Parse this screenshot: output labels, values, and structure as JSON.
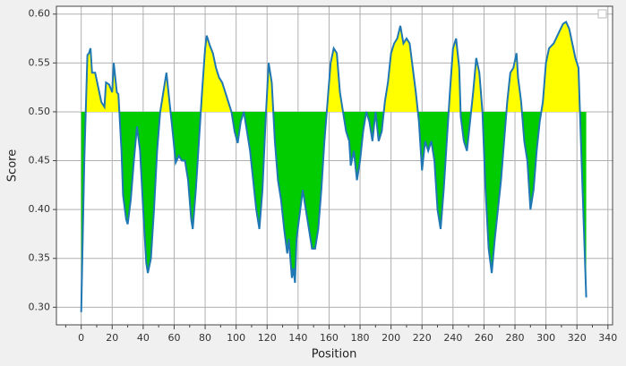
{
  "chart_data": {
    "type": "line",
    "xlabel": "Position",
    "ylabel": "Score",
    "x": [
      0,
      2,
      4,
      5,
      6,
      7,
      9,
      11,
      13,
      15,
      16,
      18,
      20,
      21,
      23,
      24,
      26,
      27,
      29,
      30,
      32,
      34,
      36,
      38,
      40,
      42,
      43,
      45,
      47,
      49,
      51,
      53,
      55,
      57,
      59,
      61,
      63,
      65,
      67,
      69,
      71,
      72,
      74,
      76,
      78,
      80,
      81,
      83,
      85,
      87,
      89,
      91,
      93,
      95,
      97,
      99,
      101,
      103,
      105,
      107,
      109,
      111,
      113,
      115,
      117,
      119,
      121,
      123,
      125,
      127,
      129,
      131,
      133,
      134,
      136,
      137,
      138,
      139,
      141,
      143,
      145,
      147,
      149,
      151,
      153,
      155,
      157,
      159,
      161,
      163,
      165,
      167,
      169,
      171,
      173,
      174,
      176,
      178,
      180,
      182,
      184,
      186,
      188,
      190,
      192,
      194,
      196,
      198,
      200,
      202,
      204,
      206,
      208,
      210,
      212,
      214,
      216,
      218,
      220,
      222,
      224,
      226,
      228,
      230,
      232,
      234,
      236,
      238,
      240,
      242,
      244,
      245,
      247,
      249,
      251,
      253,
      255,
      257,
      259,
      261,
      263,
      265,
      267,
      269,
      271,
      273,
      275,
      277,
      279,
      281,
      282,
      284,
      286,
      288,
      290,
      292,
      294,
      296,
      298,
      300,
      302,
      305,
      308,
      311,
      313,
      315,
      317,
      319,
      321,
      323,
      326
    ],
    "values": [
      0.295,
      0.45,
      0.558,
      0.56,
      0.565,
      0.54,
      0.54,
      0.525,
      0.51,
      0.505,
      0.53,
      0.528,
      0.52,
      0.55,
      0.52,
      0.518,
      0.46,
      0.415,
      0.39,
      0.385,
      0.41,
      0.45,
      0.485,
      0.46,
      0.4,
      0.345,
      0.335,
      0.35,
      0.4,
      0.46,
      0.5,
      0.52,
      0.54,
      0.51,
      0.48,
      0.448,
      0.455,
      0.45,
      0.45,
      0.43,
      0.39,
      0.38,
      0.42,
      0.47,
      0.52,
      0.565,
      0.578,
      0.568,
      0.56,
      0.545,
      0.535,
      0.53,
      0.52,
      0.51,
      0.5,
      0.48,
      0.468,
      0.49,
      0.5,
      0.48,
      0.46,
      0.43,
      0.4,
      0.38,
      0.42,
      0.49,
      0.55,
      0.53,
      0.47,
      0.43,
      0.41,
      0.38,
      0.355,
      0.37,
      0.33,
      0.34,
      0.325,
      0.37,
      0.395,
      0.42,
      0.4,
      0.38,
      0.36,
      0.36,
      0.38,
      0.42,
      0.47,
      0.51,
      0.55,
      0.565,
      0.56,
      0.52,
      0.5,
      0.48,
      0.47,
      0.445,
      0.46,
      0.43,
      0.45,
      0.48,
      0.5,
      0.49,
      0.47,
      0.5,
      0.47,
      0.48,
      0.51,
      0.53,
      0.56,
      0.57,
      0.575,
      0.588,
      0.57,
      0.575,
      0.57,
      0.545,
      0.52,
      0.49,
      0.44,
      0.47,
      0.46,
      0.47,
      0.45,
      0.4,
      0.38,
      0.42,
      0.47,
      0.52,
      0.565,
      0.575,
      0.545,
      0.495,
      0.47,
      0.46,
      0.49,
      0.52,
      0.555,
      0.54,
      0.5,
      0.42,
      0.36,
      0.335,
      0.37,
      0.4,
      0.43,
      0.47,
      0.51,
      0.54,
      0.545,
      0.56,
      0.535,
      0.51,
      0.47,
      0.45,
      0.4,
      0.42,
      0.46,
      0.49,
      0.51,
      0.55,
      0.565,
      0.57,
      0.58,
      0.59,
      0.592,
      0.585,
      0.57,
      0.555,
      0.545,
      0.45,
      0.31
    ],
    "color": "#1f77b4",
    "fill_threshold": 0.5,
    "fill_above_color": "#ffff00",
    "fill_below_color": "#00cc00",
    "xlim": [
      -16,
      343
    ],
    "ylim": [
      0.282,
      0.608
    ],
    "xticks": [
      0,
      20,
      40,
      60,
      80,
      100,
      120,
      140,
      160,
      180,
      200,
      220,
      240,
      260,
      280,
      300,
      320,
      340
    ],
    "xminorticks": [
      -10,
      10,
      30,
      50,
      70,
      90,
      110,
      130,
      150,
      170,
      190,
      210,
      230,
      250,
      270,
      290,
      310,
      330
    ],
    "yticks": [
      {
        "value": 0.3,
        "label": "0.30"
      },
      0.35,
      {
        "value": 0.4,
        "label": "0.40"
      },
      0.45,
      {
        "value": 0.5,
        "label": "0.50"
      },
      0.55,
      {
        "value": 0.6,
        "label": "0.60"
      }
    ],
    "grid": true
  }
}
